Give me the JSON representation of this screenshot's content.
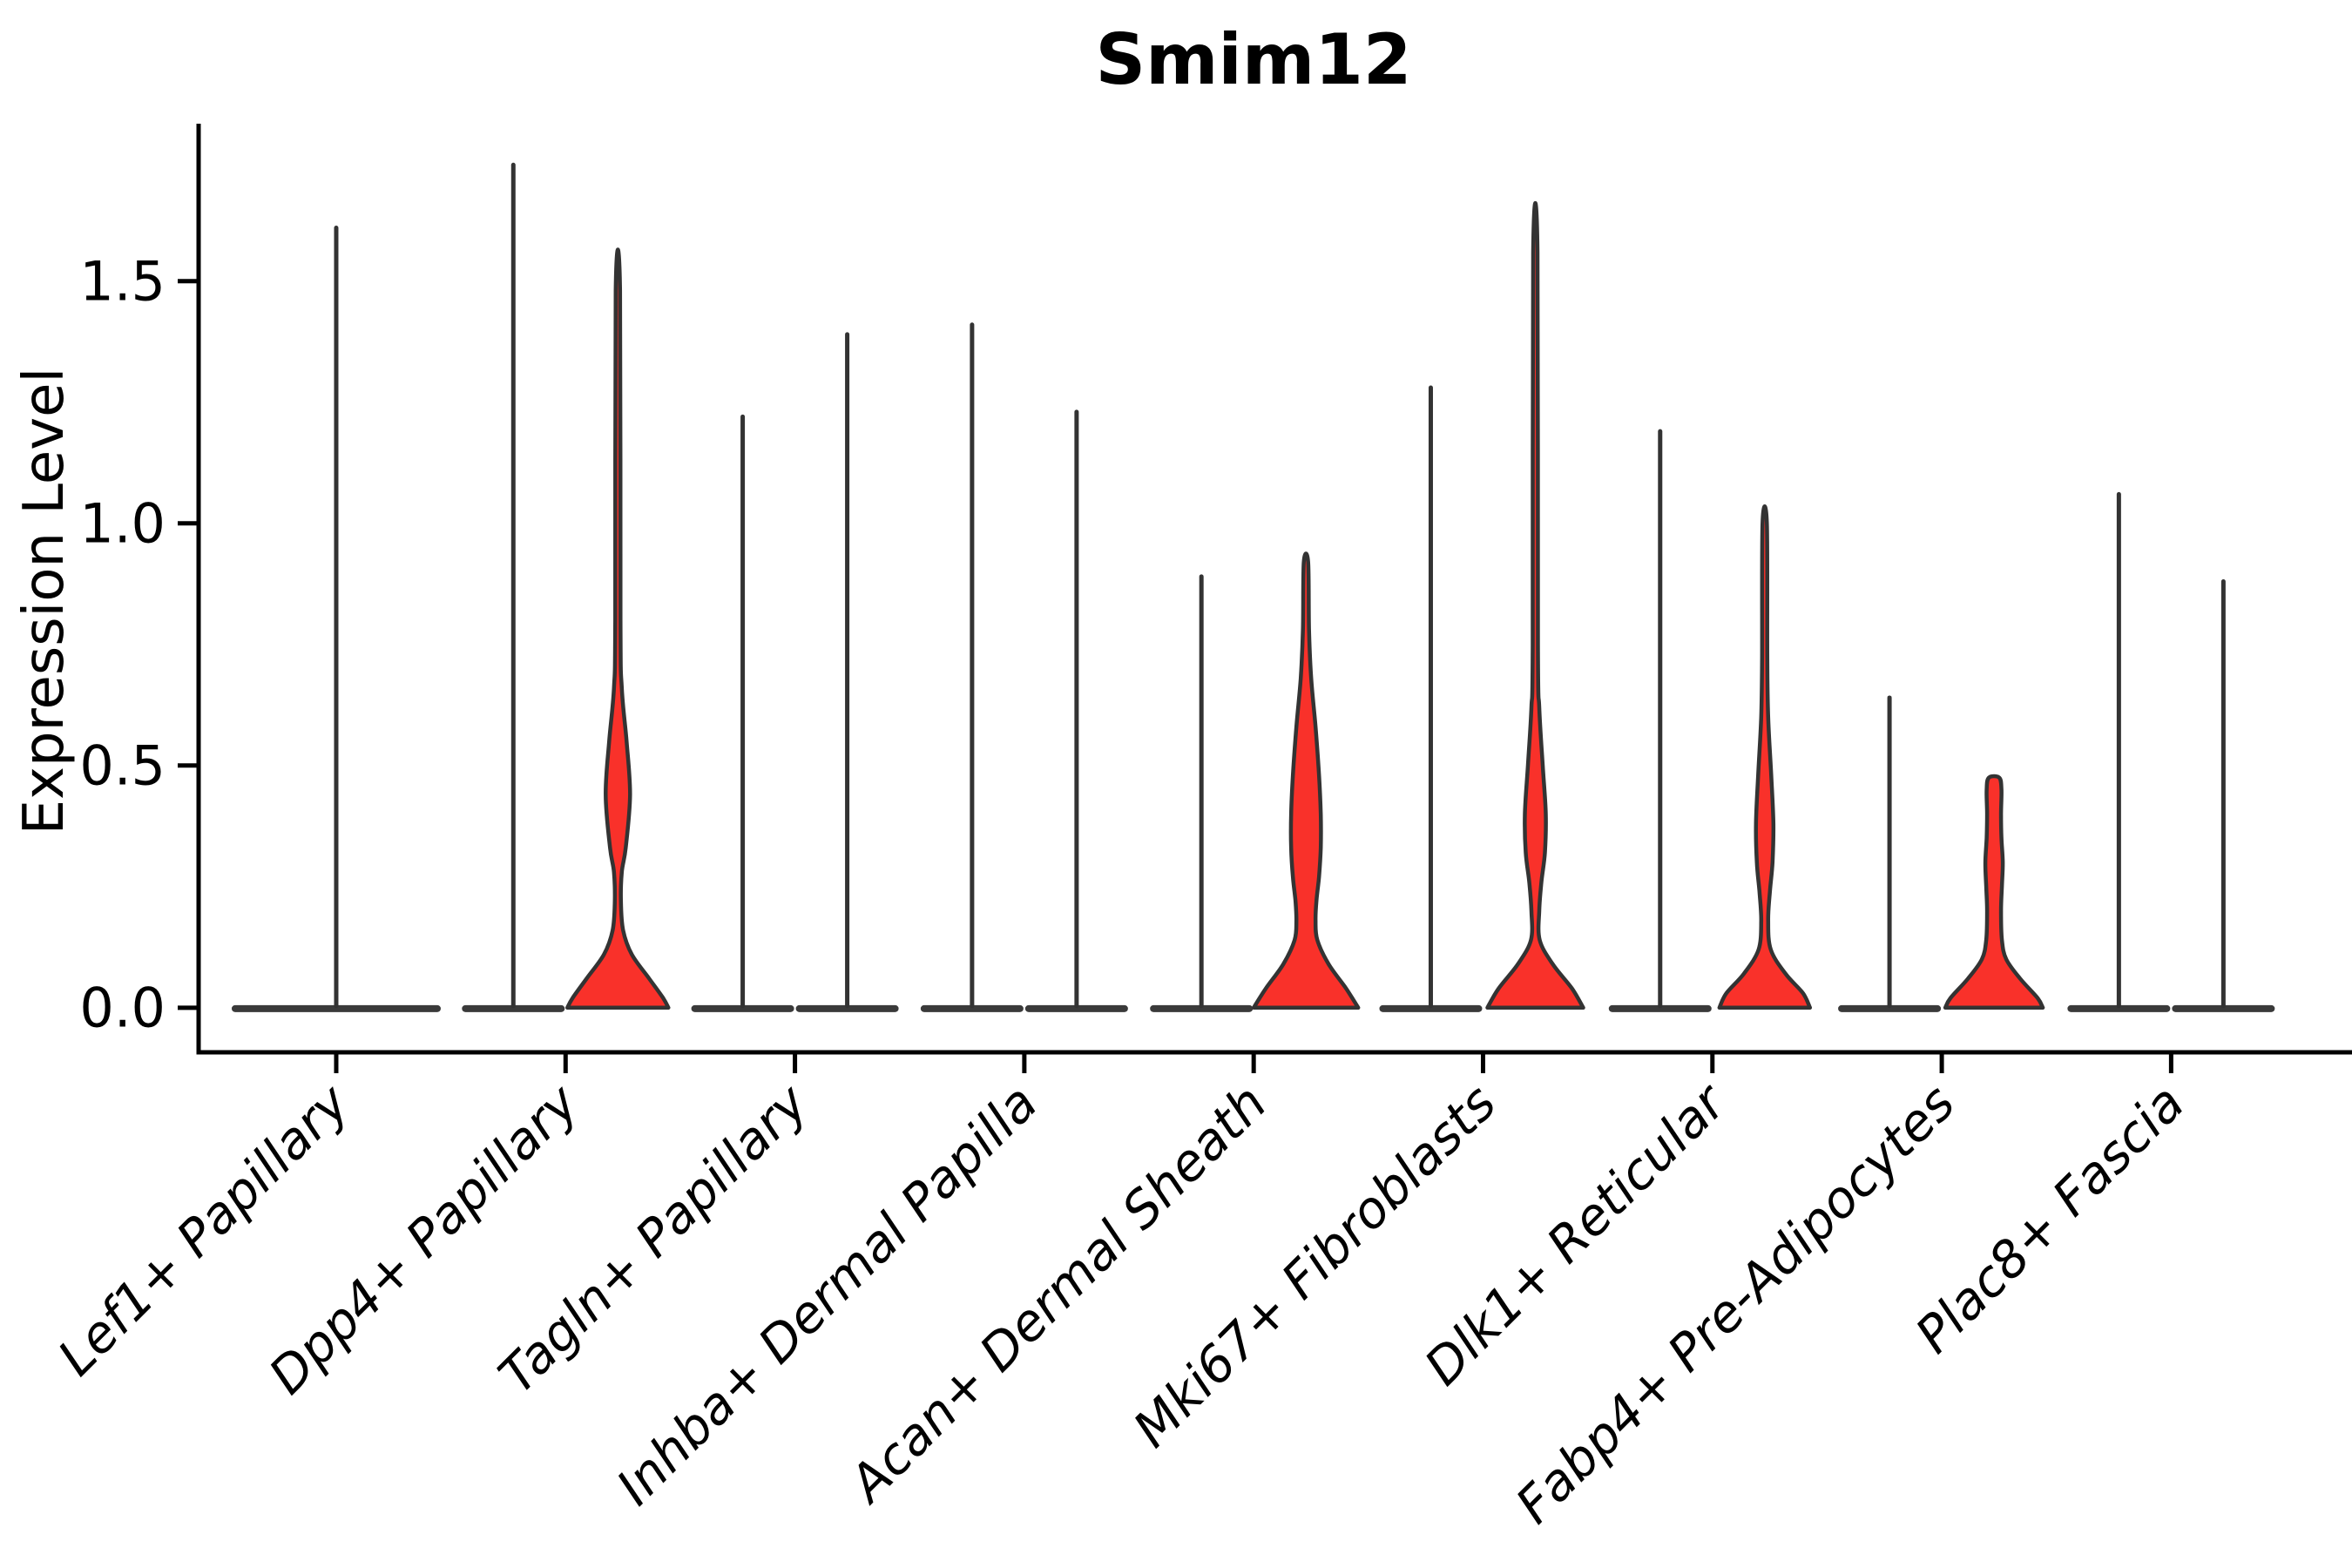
{
  "figure": {
    "title": "Smim12",
    "ylabel": "Expression Level"
  },
  "colors": {
    "violin_fill": "#F9312A",
    "violin_outline": "#333333",
    "flat_base": "#3A3A3A",
    "axis": "#000000",
    "background": "#FFFFFF"
  },
  "chart_data": {
    "type": "violin",
    "title": "Smim12",
    "ylabel": "Expression Level",
    "xlabel": "",
    "grid": false,
    "legend": "none",
    "ylim": [
      -0.092,
      1.825
    ],
    "yticks": [
      {
        "value": 0.0,
        "label": "0.0"
      },
      {
        "value": 0.5,
        "label": "0.5"
      },
      {
        "value": 1.0,
        "label": "1.0"
      },
      {
        "value": 1.5,
        "label": "1.5"
      }
    ],
    "categories": [
      "Lef1+ Papillary",
      "Dpp4+ Papillary",
      "Tagln+ Papillary",
      "Inhba+ Dermal Papilla",
      "Acan+ Dermal Sheath",
      "Mki67+ Fibroblasts",
      "Dlk1+ Reticular",
      "Fabp4+ Pre-Adipocytes",
      "Plac8+ Fascia"
    ],
    "violins": [
      {
        "category": "Lef1+ Papillary",
        "parts": [
          {
            "offset": 0,
            "max": 1.61,
            "base_halfwidth": 120,
            "shape": "flat"
          }
        ]
      },
      {
        "category": "Dpp4+ Papillary",
        "parts": [
          {
            "offset": -60,
            "max": 1.74,
            "base_halfwidth": 59,
            "shape": "flat"
          },
          {
            "offset": 60,
            "max": 1.48,
            "base_halfwidth": 58,
            "shape": "bulge",
            "profile": [
              [
                1.48,
                2.5
              ],
              [
                0.8,
                3
              ],
              [
                0.66,
                4.5
              ],
              [
                0.55,
                10
              ],
              [
                0.44,
                14
              ],
              [
                0.33,
                9
              ],
              [
                0.28,
                4.5
              ],
              [
                0.22,
                3.5
              ],
              [
                0.16,
                6
              ],
              [
                0.11,
                16
              ],
              [
                0.06,
                36
              ],
              [
                0.02,
                52
              ],
              [
                0.0,
                58
              ]
            ]
          }
        ]
      },
      {
        "category": "Tagln+ Papillary",
        "parts": [
          {
            "offset": -60,
            "max": 1.22,
            "base_halfwidth": 59,
            "shape": "flat"
          },
          {
            "offset": 60,
            "max": 1.39,
            "base_halfwidth": 59,
            "shape": "flat"
          }
        ]
      },
      {
        "category": "Inhba+ Dermal Papilla",
        "parts": [
          {
            "offset": -60,
            "max": 1.41,
            "base_halfwidth": 59,
            "shape": "flat"
          },
          {
            "offset": 60,
            "max": 1.23,
            "base_halfwidth": 59,
            "shape": "flat"
          }
        ]
      },
      {
        "category": "Acan+ Dermal Sheath",
        "parts": [
          {
            "offset": -60,
            "max": 0.89,
            "base_halfwidth": 59,
            "shape": "flat"
          },
          {
            "offset": 60,
            "max": 0.92,
            "base_halfwidth": 60,
            "shape": "bulge",
            "profile": [
              [
                0.92,
                2.5
              ],
              [
                0.78,
                3.5
              ],
              [
                0.68,
                6
              ],
              [
                0.58,
                11
              ],
              [
                0.48,
                15
              ],
              [
                0.4,
                17
              ],
              [
                0.33,
                17
              ],
              [
                0.27,
                15
              ],
              [
                0.22,
                12
              ],
              [
                0.18,
                11
              ],
              [
                0.14,
                13
              ],
              [
                0.09,
                26
              ],
              [
                0.04,
                46
              ],
              [
                0.0,
                60
              ]
            ]
          }
        ]
      },
      {
        "category": "Mki67+ Fibroblasts",
        "parts": [
          {
            "offset": -60,
            "max": 1.28,
            "base_halfwidth": 59,
            "shape": "flat"
          },
          {
            "offset": 60,
            "max": 1.56,
            "base_halfwidth": 55,
            "shape": "bulge",
            "profile": [
              [
                1.56,
                2.5
              ],
              [
                0.75,
                3
              ],
              [
                0.62,
                4.5
              ],
              [
                0.5,
                8.5
              ],
              [
                0.4,
                12
              ],
              [
                0.32,
                11
              ],
              [
                0.26,
                7
              ],
              [
                0.2,
                4.5
              ],
              [
                0.14,
                5
              ],
              [
                0.09,
                20
              ],
              [
                0.04,
                42
              ],
              [
                0.0,
                55
              ]
            ]
          }
        ]
      },
      {
        "category": "Dlk1+ Reticular",
        "parts": [
          {
            "offset": -60,
            "max": 1.19,
            "base_halfwidth": 59,
            "shape": "flat"
          },
          {
            "offset": 60,
            "max": 1.0,
            "base_halfwidth": 52,
            "shape": "bulge",
            "profile": [
              [
                1.0,
                2.5
              ],
              [
                0.72,
                3
              ],
              [
                0.6,
                4
              ],
              [
                0.48,
                7.5
              ],
              [
                0.38,
                10
              ],
              [
                0.3,
                9
              ],
              [
                0.24,
                6
              ],
              [
                0.18,
                4
              ],
              [
                0.12,
                7
              ],
              [
                0.07,
                24
              ],
              [
                0.03,
                44
              ],
              [
                0.0,
                52
              ]
            ]
          }
        ]
      },
      {
        "category": "Fabp4+ Pre-Adipocytes",
        "parts": [
          {
            "offset": -60,
            "max": 0.64,
            "base_halfwidth": 59,
            "shape": "flat"
          },
          {
            "offset": 60,
            "max": 0.475,
            "base_halfwidth": 56,
            "shape": "bulge",
            "profile": [
              [
                0.475,
                6
              ],
              [
                0.45,
                8.5
              ],
              [
                0.4,
                8
              ],
              [
                0.35,
                8.5
              ],
              [
                0.3,
                10
              ],
              [
                0.25,
                9
              ],
              [
                0.2,
                8
              ],
              [
                0.14,
                9
              ],
              [
                0.1,
                14
              ],
              [
                0.06,
                30
              ],
              [
                0.02,
                50
              ],
              [
                0.0,
                56
              ]
            ]
          }
        ]
      },
      {
        "category": "Plac8+ Fascia",
        "parts": [
          {
            "offset": -60,
            "max": 1.06,
            "base_halfwidth": 59,
            "shape": "flat"
          },
          {
            "offset": 60,
            "max": 0.88,
            "base_halfwidth": 59,
            "shape": "flat"
          }
        ]
      }
    ]
  }
}
